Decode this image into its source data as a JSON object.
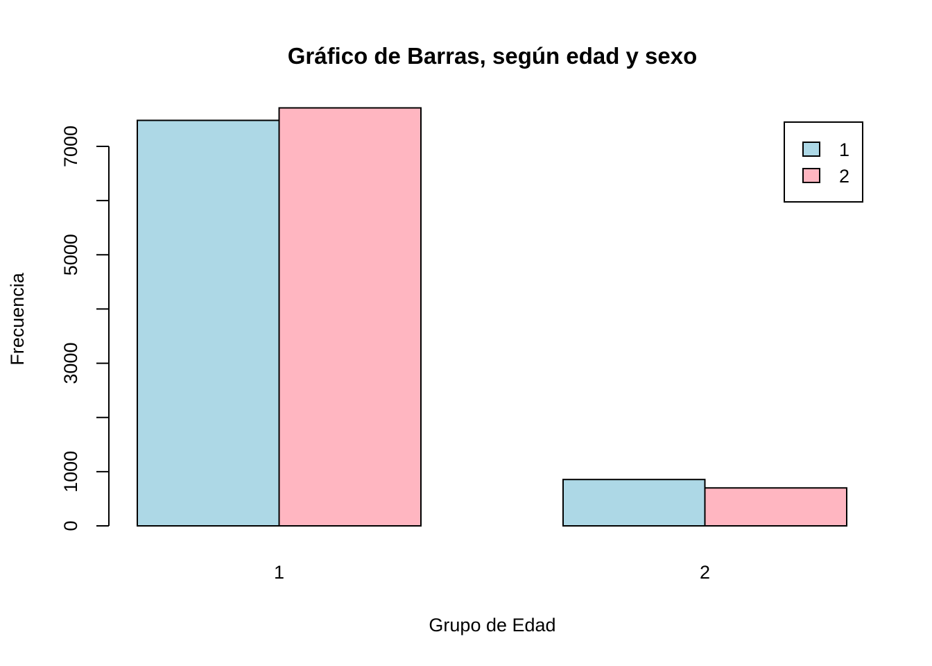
{
  "chart_data": {
    "type": "bar",
    "title": "Gráfico de Barras, según edad y sexo",
    "xlabel": "Grupo de Edad",
    "ylabel": "Frecuencia",
    "categories": [
      "1",
      "2"
    ],
    "series": [
      {
        "name": "1",
        "color": "#ADD8E6",
        "values": [
          7480,
          855
        ]
      },
      {
        "name": "2",
        "color": "#FFB6C1",
        "values": [
          7710,
          700
        ]
      }
    ],
    "yticks": [
      0,
      1000,
      2000,
      3000,
      4000,
      5000,
      6000,
      7000
    ],
    "ytick_labels": [
      "0",
      "1000",
      "",
      "3000",
      "",
      "5000",
      "",
      "7000"
    ],
    "ylim": [
      0,
      7710
    ],
    "grid": false,
    "legend_position": "top-right",
    "bar_border_color": "#000000"
  }
}
